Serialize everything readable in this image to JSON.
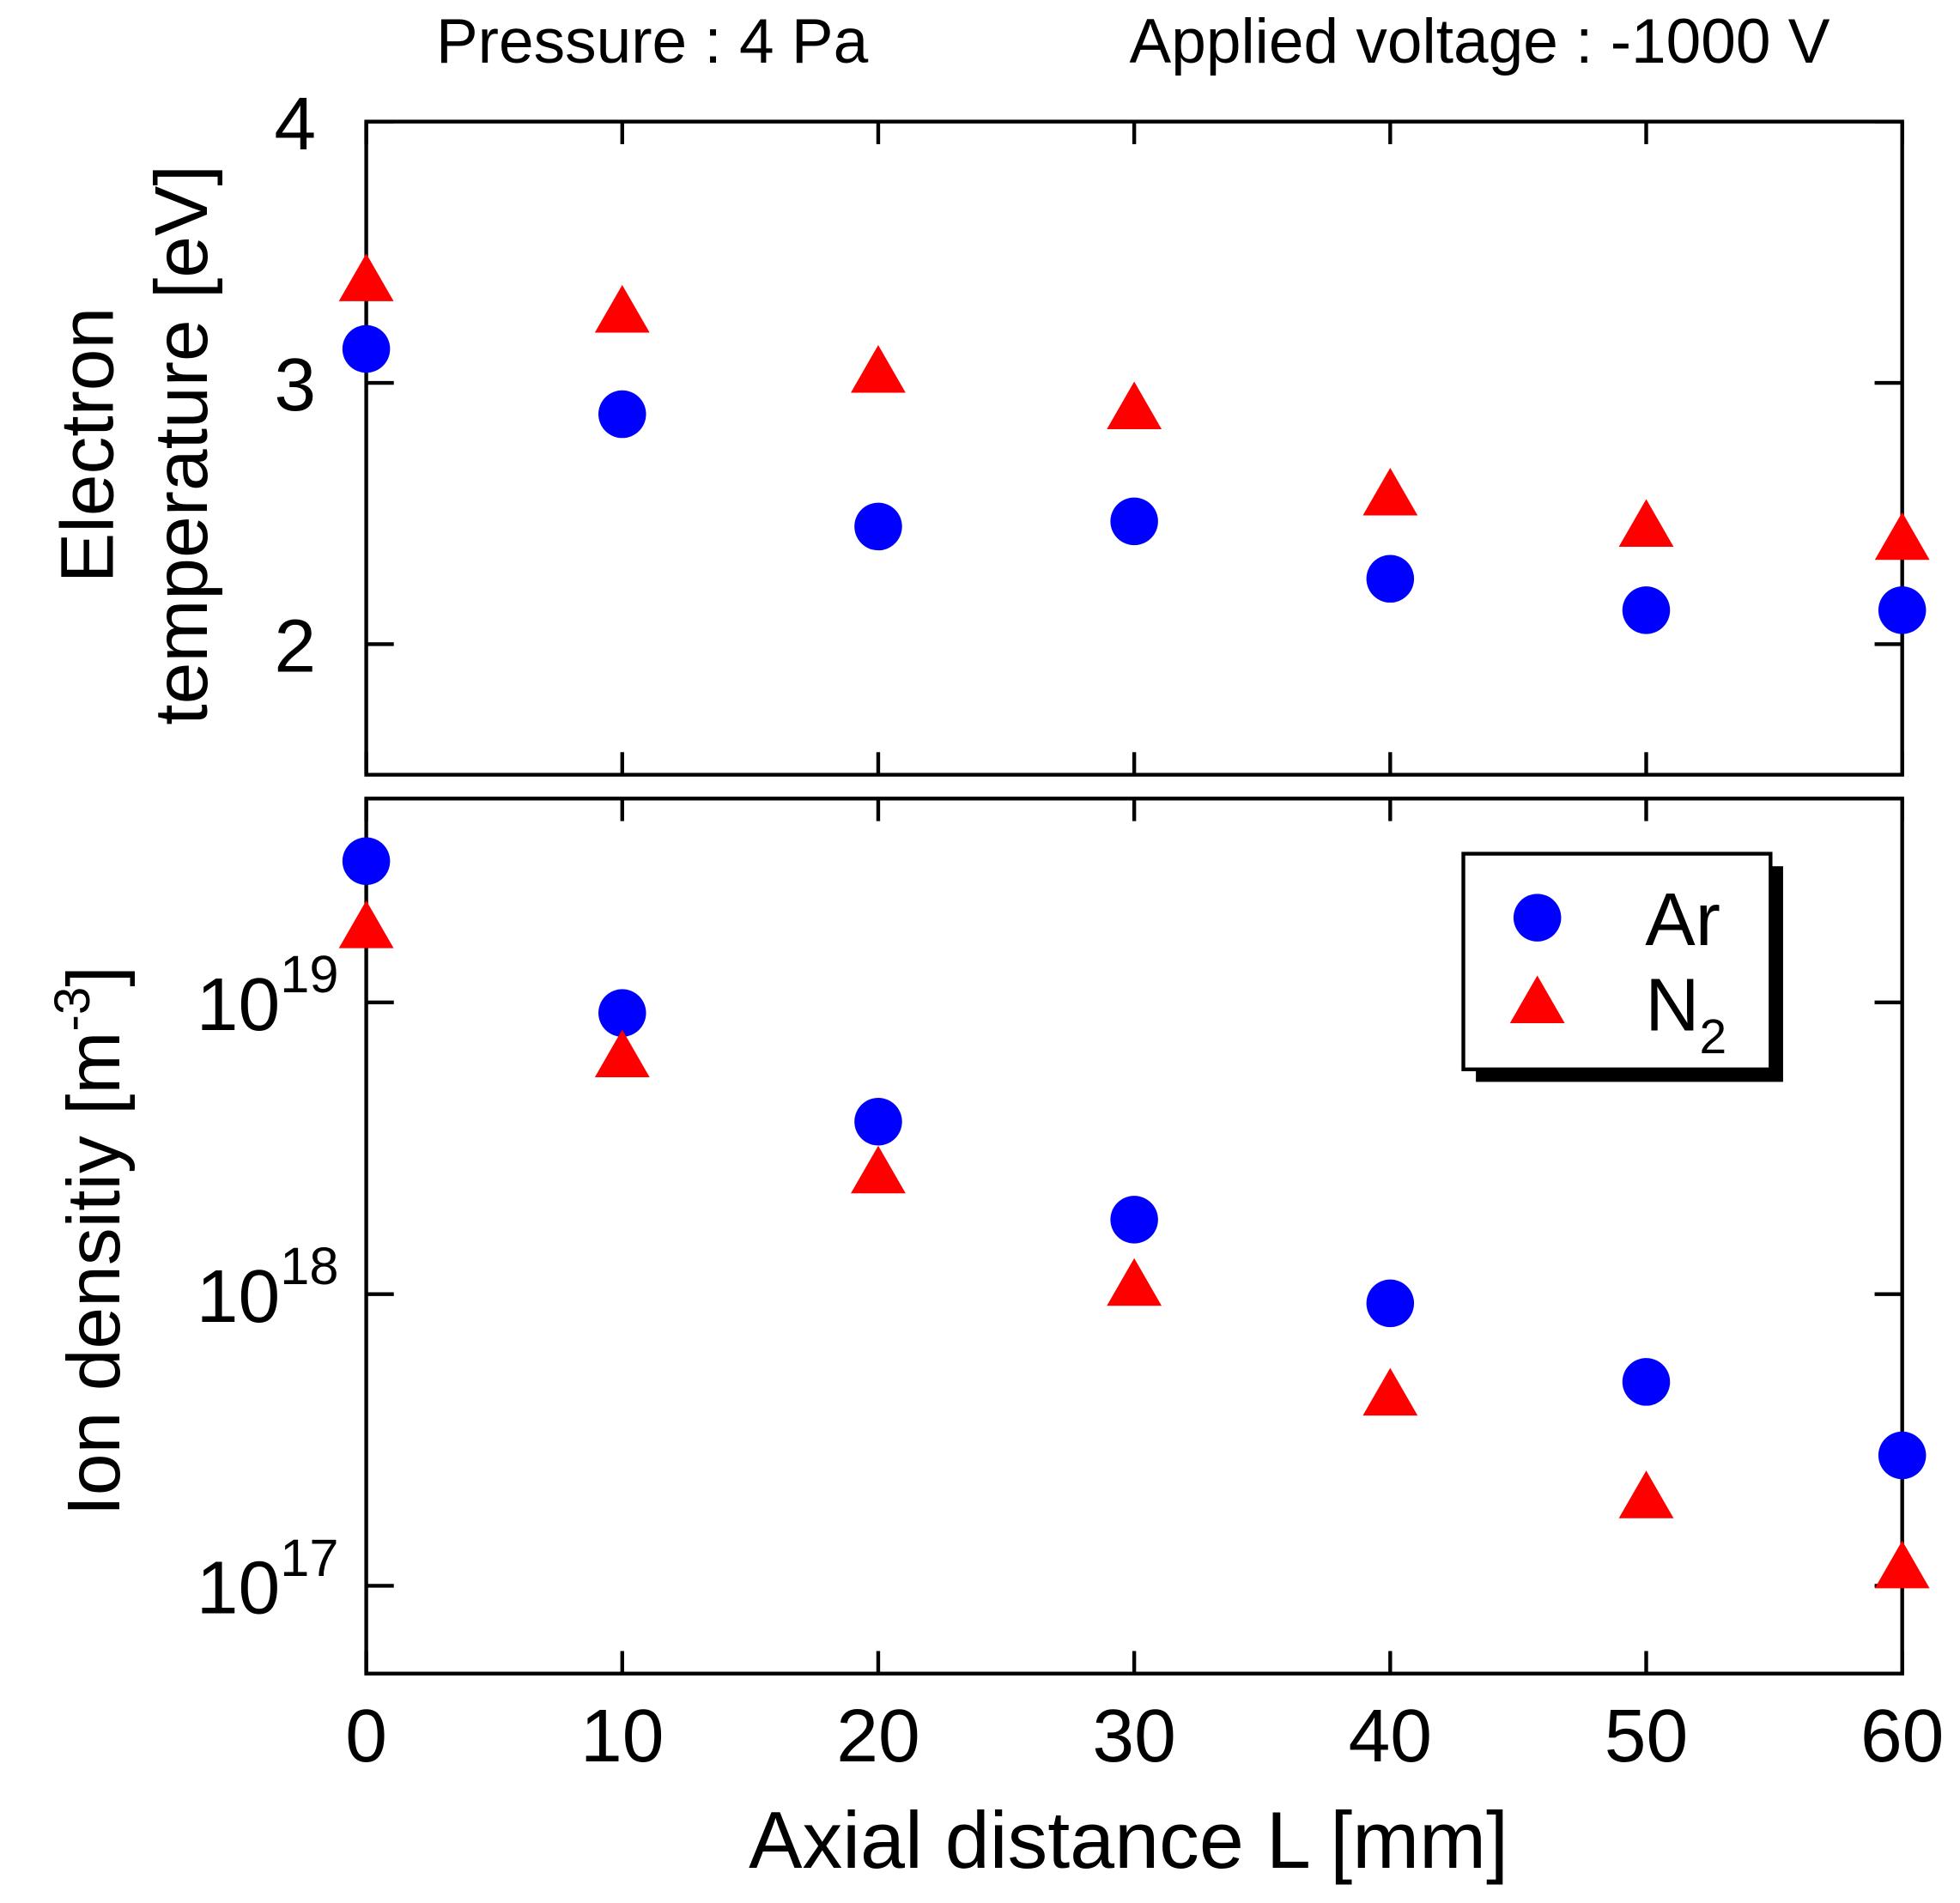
{
  "chart_data": [
    {
      "type": "scatter",
      "annotations": [
        "Pressure : 4 Pa",
        "Applied voltage : -1000 V"
      ],
      "ylabel": [
        "Electron",
        "temperature [eV]"
      ],
      "x": [
        0,
        10,
        20,
        30,
        40,
        50,
        60
      ],
      "xlim": [
        0,
        60
      ],
      "xticks": [
        0,
        10,
        20,
        30,
        40,
        50,
        60
      ],
      "ylim": [
        1.5,
        4
      ],
      "yticks": [
        2,
        3,
        4
      ],
      "series": [
        {
          "name": "Ar",
          "color": "#0000ff",
          "marker": "circle",
          "values": [
            3.13,
            2.88,
            2.45,
            2.47,
            2.25,
            2.13,
            2.13
          ]
        },
        {
          "name": "N2",
          "color": "#ff0000",
          "marker": "triangle",
          "values": [
            3.39,
            3.27,
            3.04,
            2.9,
            2.57,
            2.45,
            2.4
          ]
        }
      ]
    },
    {
      "type": "scatter",
      "xlabel": "Axial distance L [mm]",
      "ylabel": {
        "text": "Ion densitiy [m",
        "sup": "-3",
        "end": "]"
      },
      "log_y": true,
      "x": [
        0,
        10,
        20,
        30,
        40,
        50,
        60
      ],
      "xlim": [
        0,
        60
      ],
      "xticks": [
        0,
        10,
        20,
        30,
        40,
        50,
        60
      ],
      "ylim": [
        5e+16,
        5e+19
      ],
      "yticks": [
        {
          "value": 1e+17,
          "label": "10",
          "sup": "17"
        },
        {
          "value": 1e+18,
          "label": "10",
          "sup": "18"
        },
        {
          "value": 1e+19,
          "label": "10",
          "sup": "19"
        }
      ],
      "legend": "upper right",
      "series": [
        {
          "name": "Ar",
          "color": "#0000ff",
          "marker": "circle",
          "values": [
            3.05e+19,
            9.2e+18,
            3.9e+18,
            1.8e+18,
            9.3e+17,
            5e+17,
            2.8e+17
          ]
        },
        {
          "name": "N2",
          "color": "#ff0000",
          "marker": "triangle",
          "values": [
            1.8e+19,
            6.5e+18,
            2.6e+18,
            1.07e+18,
            4.5e+17,
            2e+17,
            1.15e+17
          ]
        }
      ]
    }
  ]
}
